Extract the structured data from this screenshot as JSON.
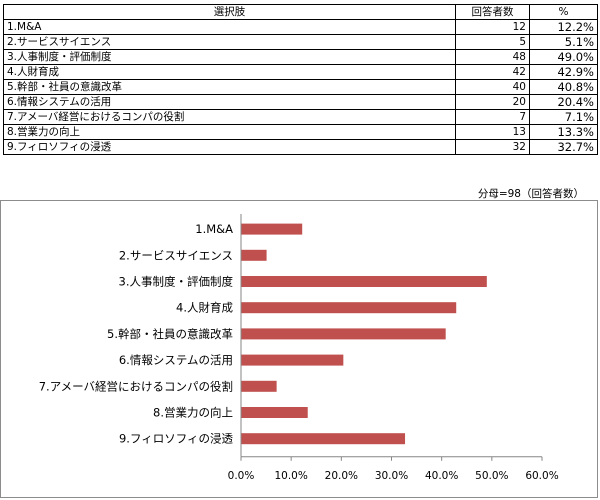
{
  "table": {
    "headers": {
      "choice": "選択肢",
      "count": "回答者数",
      "percent": "%"
    },
    "rows": [
      {
        "choice": "1.M&A",
        "count": "12",
        "percent": "12.2%"
      },
      {
        "choice": "2.サービスサイエンス",
        "count": "5",
        "percent": "5.1%"
      },
      {
        "choice": "3.人事制度・評価制度",
        "count": "48",
        "percent": "49.0%"
      },
      {
        "choice": "4.人財育成",
        "count": "42",
        "percent": "42.9%"
      },
      {
        "choice": "5.幹部・社員の意識改革",
        "count": "40",
        "percent": "40.8%"
      },
      {
        "choice": "6.情報システムの活用",
        "count": "20",
        "percent": "20.4%"
      },
      {
        "choice": "7.アメーバ経営におけるコンパの役割",
        "count": "7",
        "percent": "7.1%"
      },
      {
        "choice": "8.営業力の向上",
        "count": "13",
        "percent": "13.3%"
      },
      {
        "choice": "9.フィロソフィの浸透",
        "count": "32",
        "percent": "32.7%"
      }
    ],
    "note": "分母=98（回答者数）"
  },
  "chart_data": {
    "type": "bar",
    "orientation": "horizontal",
    "categories": [
      "1.M&A",
      "2.サービスサイエンス",
      "3.人事制度・評価制度",
      "4.人財育成",
      "5.幹部・社員の意識改革",
      "6.情報システムの活用",
      "7.アメーバ経営におけるコンパの役割",
      "8.営業力の向上",
      "9.フィロソフィの浸透"
    ],
    "values": [
      12.2,
      5.1,
      49.0,
      42.9,
      40.8,
      20.4,
      7.1,
      13.3,
      32.7
    ],
    "xlim": [
      0,
      60
    ],
    "ticks": [
      "0.0%",
      "10.0%",
      "20.0%",
      "30.0%",
      "40.0%",
      "50.0%",
      "60.0%"
    ],
    "bar_color": "#c0504d",
    "grid": false,
    "legend": "none"
  }
}
